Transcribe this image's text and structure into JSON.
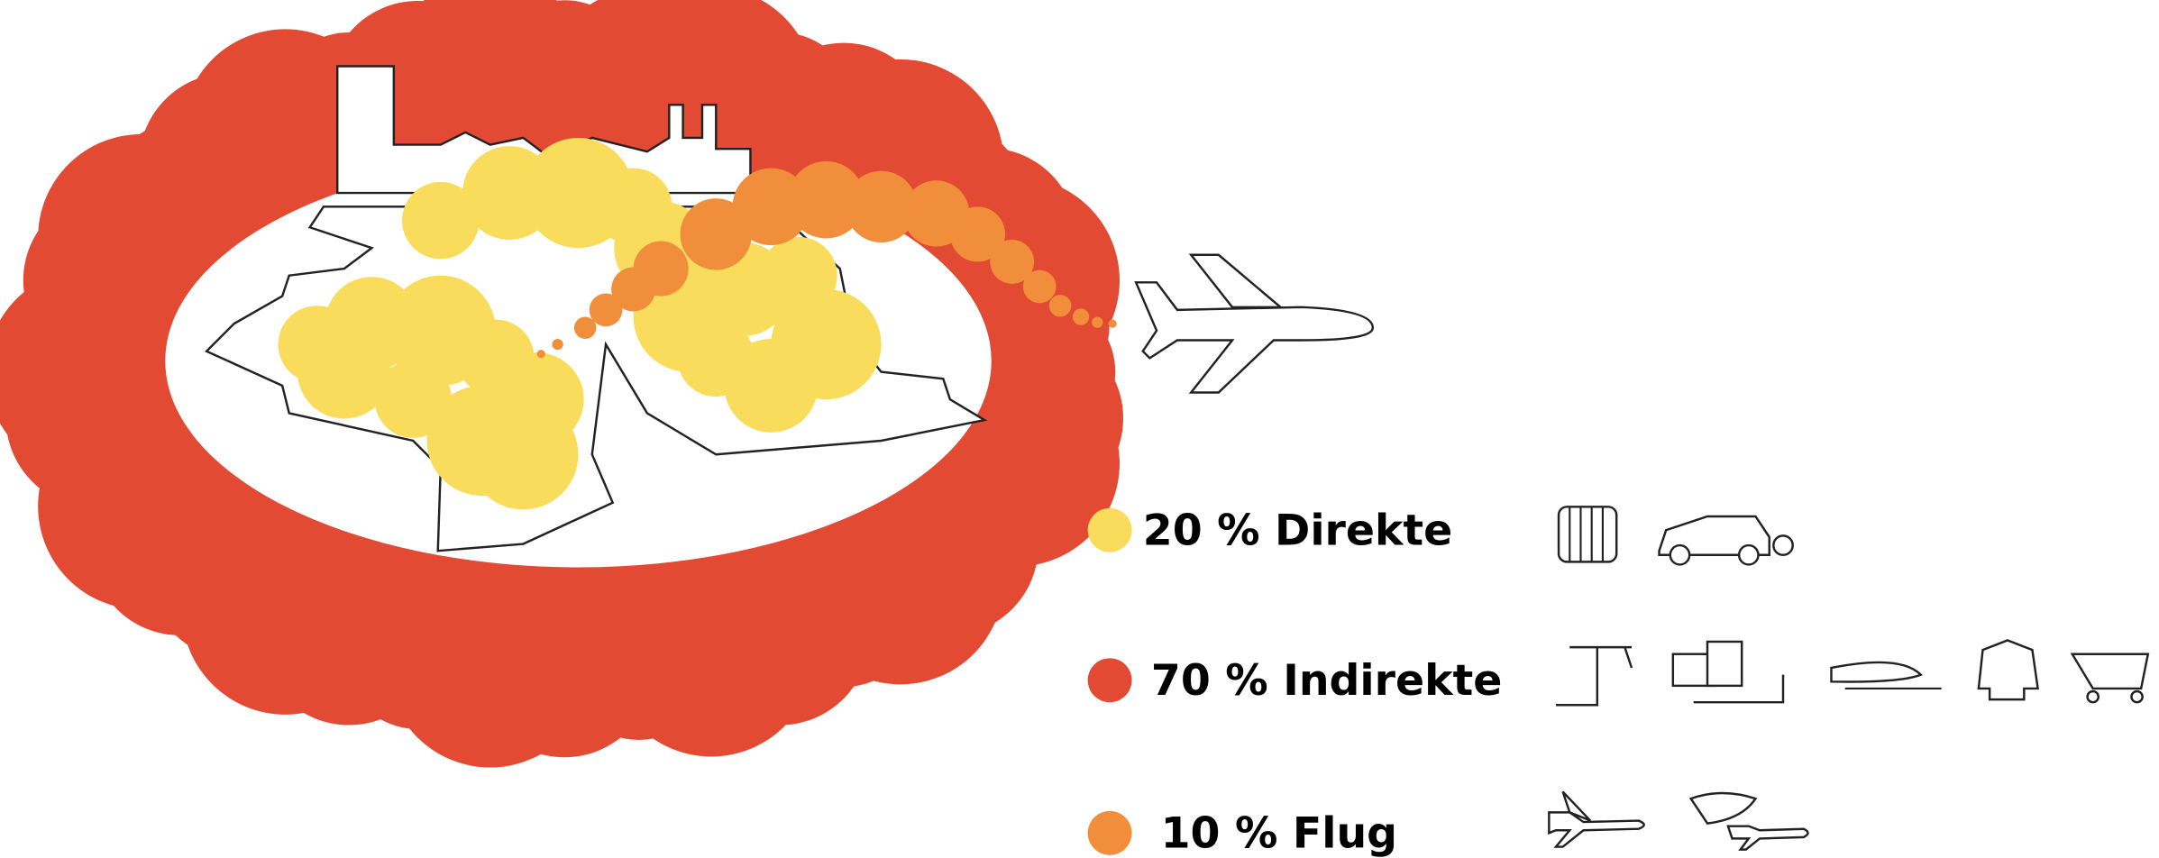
{
  "items": [
    {
      "label": "20 % Direkte",
      "color": "#f9dc5c"
    },
    {
      "label": "70 % Indirekte",
      "color": "#e34a33"
    },
    {
      "label": "10 % Flug",
      "color": "#f08e3c"
    }
  ]
}
